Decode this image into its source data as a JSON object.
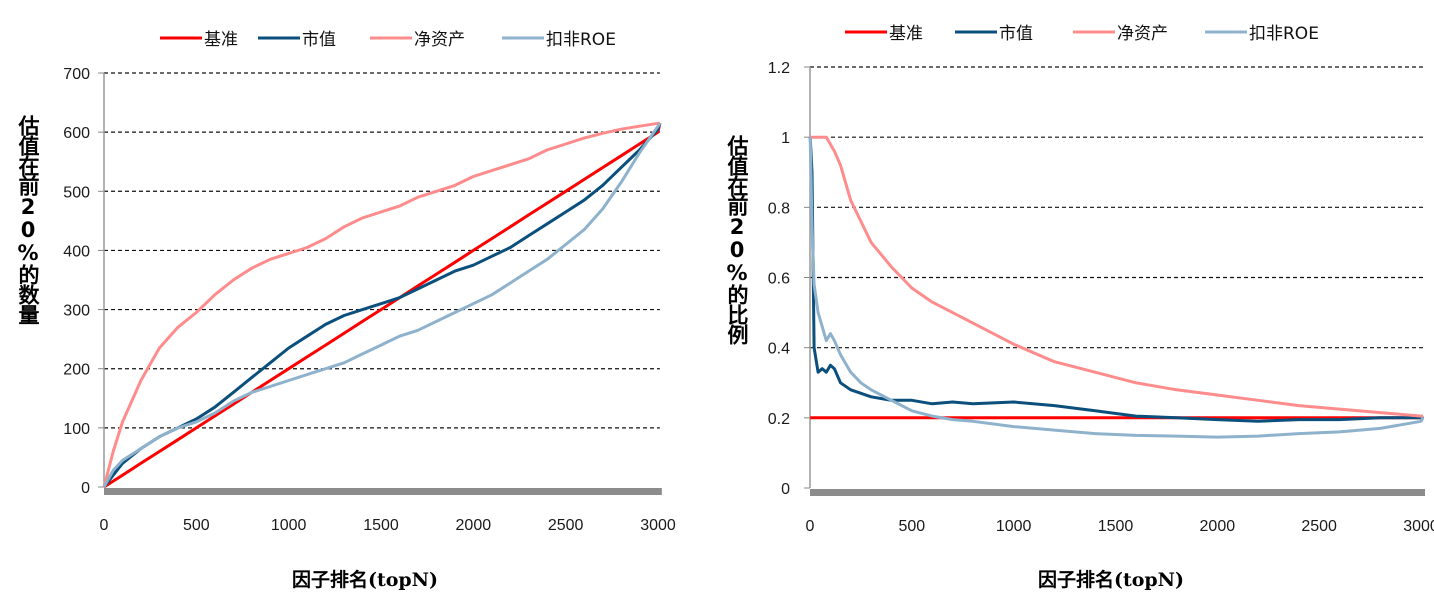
{
  "chart_data": [
    {
      "id": "left",
      "type": "line",
      "title": "",
      "xlabel": "因子排名(topN)",
      "ylabel": "估值在前20%的数量",
      "xlim": [
        0,
        3010
      ],
      "ylim": [
        0,
        700
      ],
      "xticks": [
        0,
        500,
        1000,
        1500,
        2000,
        2500,
        3000
      ],
      "yticks": [
        0,
        100,
        200,
        300,
        400,
        500,
        600,
        700
      ],
      "xtick_labels": [
        "0",
        "500",
        "1000",
        "1500",
        "2000",
        "2500",
        "3000"
      ],
      "ytick_labels": [
        "0",
        "100",
        "200",
        "300",
        "400",
        "500",
        "600",
        "700"
      ],
      "grid": "horizontal-dashed",
      "legend_position": "top-center",
      "x": [
        0,
        50,
        100,
        200,
        300,
        400,
        500,
        600,
        700,
        800,
        900,
        1000,
        1100,
        1200,
        1300,
        1400,
        1500,
        1600,
        1700,
        1800,
        1900,
        2000,
        2100,
        2200,
        2300,
        2400,
        2500,
        2600,
        2700,
        2800,
        2900,
        3000,
        3010
      ],
      "series": [
        {
          "name": "基准",
          "color": "#ff0000",
          "values": [
            0,
            10,
            20,
            40,
            60,
            80,
            100,
            120,
            140,
            160,
            180,
            200,
            220,
            240,
            260,
            280,
            300,
            320,
            340,
            360,
            380,
            400,
            420,
            440,
            460,
            480,
            500,
            520,
            540,
            560,
            580,
            600,
            615
          ]
        },
        {
          "name": "市值",
          "color": "#0b4f7c",
          "values": [
            0,
            20,
            40,
            65,
            85,
            100,
            115,
            135,
            160,
            185,
            210,
            235,
            255,
            275,
            290,
            300,
            310,
            320,
            335,
            350,
            365,
            375,
            390,
            405,
            425,
            445,
            465,
            485,
            510,
            540,
            570,
            605,
            615
          ]
        },
        {
          "name": "净资产",
          "color": "#ff8c8c",
          "values": [
            0,
            60,
            110,
            180,
            235,
            270,
            295,
            325,
            350,
            370,
            385,
            395,
            405,
            420,
            440,
            455,
            465,
            475,
            490,
            500,
            510,
            525,
            535,
            545,
            555,
            570,
            580,
            590,
            598,
            605,
            610,
            615,
            615
          ]
        },
        {
          "name": "扣非ROE",
          "color": "#8fb2cc",
          "values": [
            0,
            28,
            45,
            65,
            85,
            100,
            110,
            125,
            145,
            160,
            170,
            180,
            190,
            200,
            210,
            225,
            240,
            255,
            265,
            280,
            295,
            310,
            325,
            345,
            365,
            385,
            410,
            435,
            470,
            515,
            565,
            610,
            615
          ]
        }
      ]
    },
    {
      "id": "right",
      "type": "line",
      "title": "",
      "xlabel": "因子排名(topN)",
      "ylabel": "估值在前20%的比例",
      "xlim": [
        0,
        3010
      ],
      "ylim": [
        0,
        1.2
      ],
      "xticks": [
        0,
        500,
        1000,
        1500,
        2000,
        2500,
        3000
      ],
      "yticks": [
        0,
        0.2,
        0.4,
        0.6,
        0.8,
        1.0,
        1.2
      ],
      "xtick_labels": [
        "0",
        "500",
        "1000",
        "1500",
        "2000",
        "2500",
        "3000"
      ],
      "ytick_labels": [
        "0",
        "0.2",
        "0.4",
        "0.6",
        "0.8",
        "1",
        "1.2"
      ],
      "grid": "horizontal-dashed",
      "legend_position": "top-center",
      "x": [
        1,
        10,
        20,
        40,
        60,
        80,
        100,
        120,
        150,
        200,
        250,
        300,
        400,
        500,
        600,
        700,
        800,
        1000,
        1200,
        1400,
        1600,
        1800,
        2000,
        2200,
        2400,
        2600,
        2800,
        3000,
        3010
      ],
      "series": [
        {
          "name": "基准",
          "color": "#ff0000",
          "values": [
            0.2,
            0.2,
            0.2,
            0.2,
            0.2,
            0.2,
            0.2,
            0.2,
            0.2,
            0.2,
            0.2,
            0.2,
            0.2,
            0.2,
            0.2,
            0.2,
            0.2,
            0.2,
            0.2,
            0.2,
            0.2,
            0.2,
            0.2,
            0.2,
            0.2,
            0.2,
            0.2,
            0.2,
            0.2
          ]
        },
        {
          "name": "市值",
          "color": "#0b4f7c",
          "values": [
            1.0,
            0.9,
            0.4,
            0.33,
            0.34,
            0.33,
            0.35,
            0.34,
            0.3,
            0.28,
            0.27,
            0.26,
            0.25,
            0.25,
            0.24,
            0.245,
            0.24,
            0.245,
            0.235,
            0.22,
            0.205,
            0.2,
            0.195,
            0.19,
            0.195,
            0.195,
            0.2,
            0.2,
            0.205
          ]
        },
        {
          "name": "净资产",
          "color": "#ff8c8c",
          "values": [
            1.0,
            1.0,
            1.0,
            1.0,
            1.0,
            1.0,
            0.98,
            0.96,
            0.92,
            0.82,
            0.76,
            0.7,
            0.63,
            0.57,
            0.53,
            0.5,
            0.47,
            0.41,
            0.36,
            0.33,
            0.3,
            0.28,
            0.265,
            0.25,
            0.235,
            0.225,
            0.215,
            0.205,
            0.205
          ]
        },
        {
          "name": "扣非ROE",
          "color": "#8fb2cc",
          "values": [
            1.0,
            0.75,
            0.58,
            0.5,
            0.46,
            0.42,
            0.44,
            0.42,
            0.38,
            0.33,
            0.3,
            0.28,
            0.25,
            0.22,
            0.205,
            0.195,
            0.19,
            0.175,
            0.165,
            0.155,
            0.15,
            0.148,
            0.145,
            0.148,
            0.155,
            0.16,
            0.17,
            0.19,
            0.2
          ]
        }
      ]
    }
  ]
}
